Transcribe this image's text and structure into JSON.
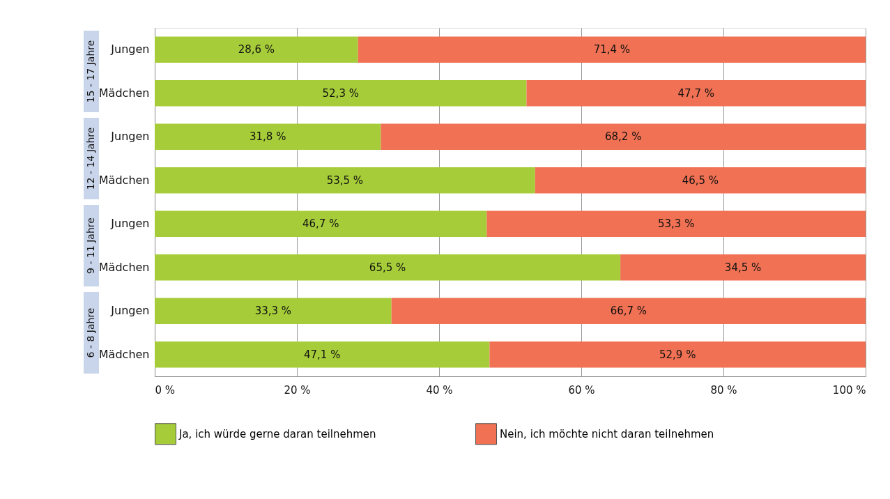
{
  "chart_data": {
    "type": "bar",
    "orientation": "horizontal",
    "stacked": true,
    "categories": [
      "Jungen",
      "Mädchen",
      "Jungen",
      "Mädchen",
      "Jungen",
      "Mädchen",
      "Jungen",
      "Mädchen"
    ],
    "series": [
      {
        "name": "Ja, ich würde gerne daran teilnehmen",
        "color": "#a6cd39",
        "values": [
          28.6,
          52.3,
          31.8,
          53.5,
          46.7,
          65.5,
          33.3,
          47.1
        ],
        "value_labels": [
          "28,6 %",
          "52,3 %",
          "31,8 %",
          "53,5 %",
          "46,7 %",
          "65,5 %",
          "33,3 %",
          "47,1  %"
        ]
      },
      {
        "name": "Nein, ich möchte nicht daran teilnehmen",
        "color": "#f07153",
        "values": [
          71.4,
          47.7,
          68.2,
          46.5,
          53.3,
          34.5,
          66.7,
          52.9
        ],
        "value_labels": [
          "71,4 %",
          "47,7 %",
          "68,2 %",
          "46,5 %",
          "53,3 %",
          "34,5 %",
          "66,7 %",
          "52,9  %"
        ]
      }
    ],
    "annotations": [
      "15 - 17 Jahre",
      "12 - 14 Jahre",
      "9 - 11 Jahre",
      "6 - 8 Jahre"
    ],
    "xlim": [
      0,
      100
    ],
    "xticks": [
      {
        "value": 0,
        "label": "0 %"
      },
      {
        "value": 20,
        "label": "20 %"
      },
      {
        "value": 40,
        "label": "40 %"
      },
      {
        "value": 60,
        "label": "60 %"
      },
      {
        "value": 80,
        "label": "80 %"
      },
      {
        "value": 100,
        "label": "100 %"
      }
    ],
    "grid": "x",
    "legend": "bottom"
  }
}
